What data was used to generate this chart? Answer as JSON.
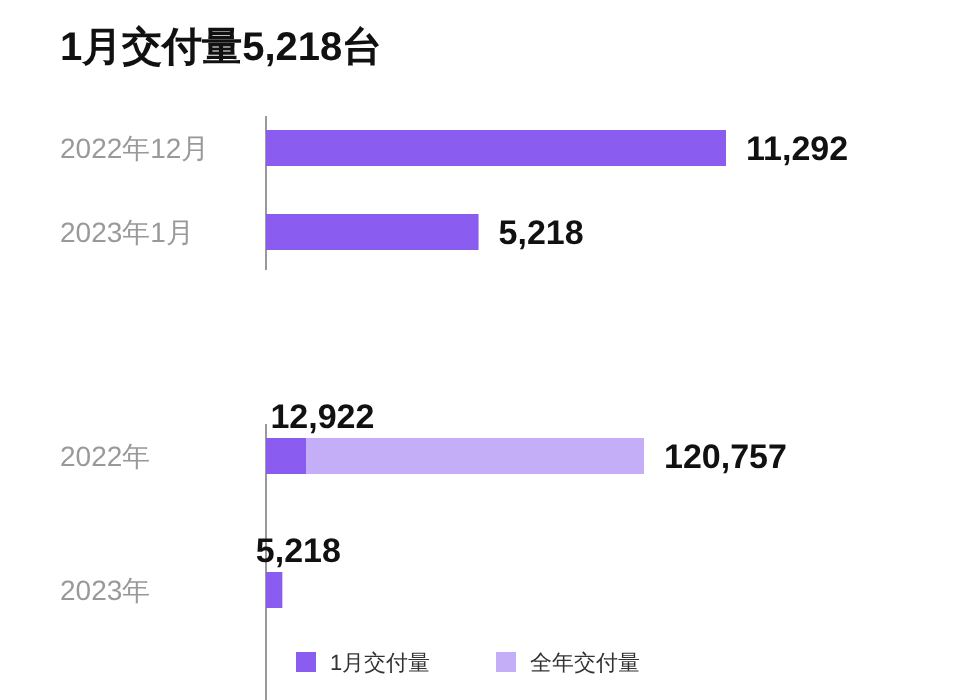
{
  "chart_data": [
    {
      "type": "bar",
      "orientation": "horizontal",
      "title": "1月交付量5,218台",
      "categories": [
        "2022年12月",
        "2023年1月"
      ],
      "values": [
        11292,
        5218
      ],
      "color": "#8b5cf0",
      "value_labels": [
        "11,292",
        "5,218"
      ]
    },
    {
      "type": "bar",
      "orientation": "horizontal",
      "stacked": true,
      "categories": [
        "2022年",
        "2023年"
      ],
      "series": [
        {
          "name": "1月交付量",
          "color": "#8b5cf0",
          "values": [
            12922,
            5218
          ],
          "value_labels": [
            "12,922",
            "5,218"
          ]
        },
        {
          "name": "全年交付量",
          "color": "#c4aef7",
          "values": [
            107835,
            null
          ]
        }
      ],
      "totals": [
        "120,757",
        null
      ],
      "legend": "bottom"
    }
  ]
}
